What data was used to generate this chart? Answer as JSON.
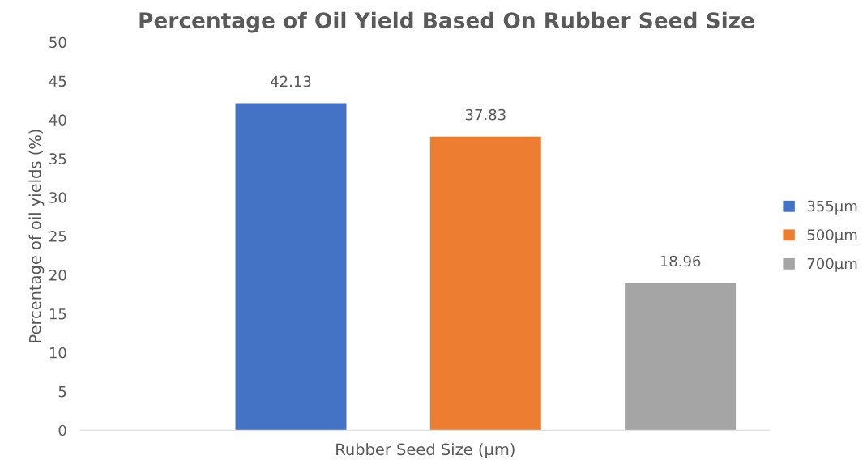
{
  "chart_data": {
    "type": "bar",
    "title": "Percentage of Oil Yield Based On Rubber Seed Size",
    "xlabel": "Rubber Seed Size (µm)",
    "ylabel": "Percentage of oil yields (%)",
    "categories": [
      null,
      null,
      null
    ],
    "series": [
      {
        "name": "355µm",
        "color": "#4472c4",
        "values": [
          42.13,
          null,
          null
        ]
      },
      {
        "name": "500µm",
        "color": "#ed7d31",
        "values": [
          null,
          37.83,
          null
        ]
      },
      {
        "name": "700µm",
        "color": "#a5a5a5",
        "values": [
          null,
          null,
          18.96
        ]
      }
    ],
    "ylim": [
      0,
      50
    ],
    "yticks": [
      0,
      5,
      10,
      15,
      20,
      25,
      30,
      35,
      40,
      45,
      50
    ],
    "data_labels": true,
    "grid": false,
    "legend": "right"
  }
}
